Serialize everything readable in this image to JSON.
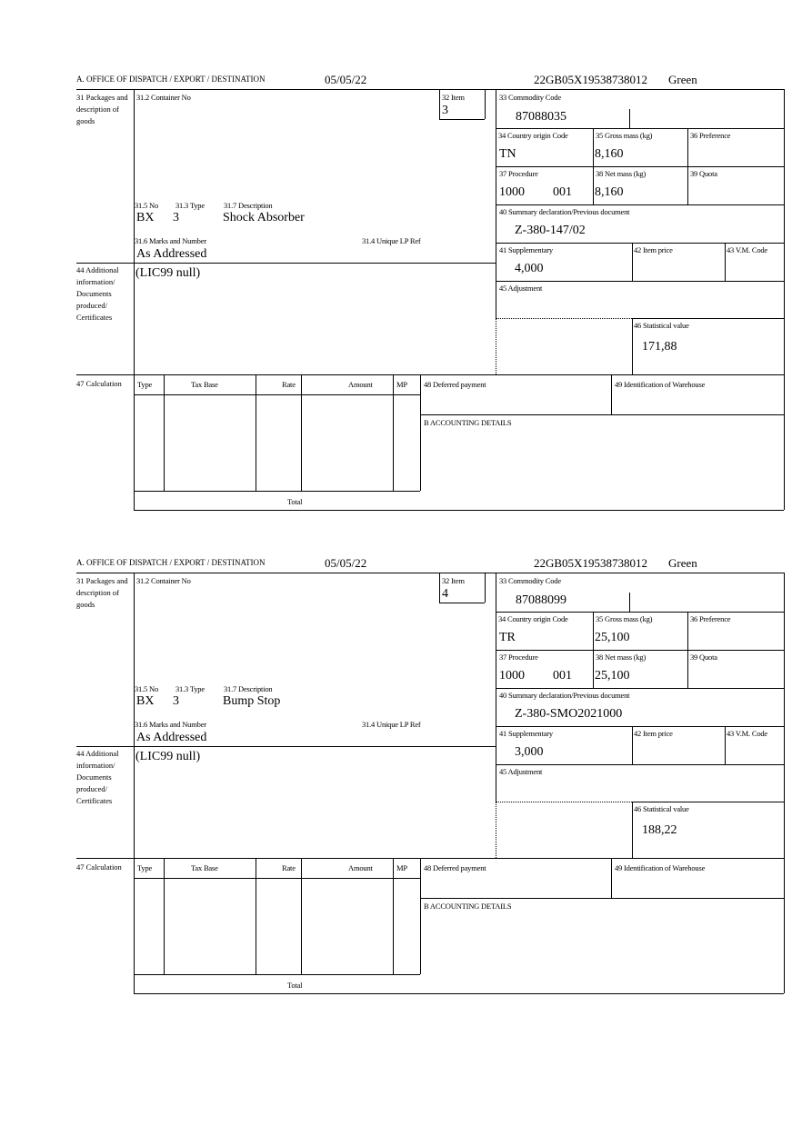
{
  "header": {
    "office_label": "A.  OFFICE OF DISPATCH / EXPORT / DESTINATION",
    "date": "05/05/22",
    "reference": "22GB05X19538738012",
    "route": "Green"
  },
  "labels": {
    "packages": "31 Packages and description of goods",
    "container_no": "31.2 Container No",
    "item": "32 Item",
    "no": "31.5 No",
    "type": "31.3 Type",
    "description": "31.7 Description",
    "marks": "31.6 Marks and Number",
    "unique_lp_ref": "31.4 Unique LP Ref",
    "additional_info": "44 Additional information/ Documents produced/ Certificates",
    "commodity_code": "33 Commodity Code",
    "country_origin": "34 Country origin Code",
    "gross_mass": "35 Gross mass (kg)",
    "preference": "36 Preference",
    "procedure": "37 Procedure",
    "net_mass": "38 Net mass (kg)",
    "quota": "39 Quota",
    "summary_declaration": "40 Summary declaration/Previous document",
    "supplementary": "41 Supplementary",
    "item_price": "42 Item price",
    "vm_code": "43 V.M. Code",
    "adjustment": "45 Adjustment",
    "statistical_value": "46 Statistical value",
    "calculation": "47 Calculation",
    "calc_type": "Type",
    "calc_tax_base": "Tax Base",
    "calc_rate": "Rate",
    "calc_amount": "Amount",
    "calc_mp": "MP",
    "calc_total": "Total",
    "deferred_payment": "48 Deferred payment",
    "warehouse": "49 Identification of Warehouse",
    "accounting": "B ACCOUNTING DETAILS"
  },
  "items": [
    {
      "item_no": "3",
      "pkg_no": "BX",
      "pkg_type": "3",
      "description": "Shock Absorber",
      "marks": "As Addressed",
      "additional_info": "(LIC99 null)",
      "commodity_code": "87088035",
      "country_origin": "TN",
      "gross_mass": "8,160",
      "procedure": "1000",
      "procedure_add": "001",
      "net_mass": "8,160",
      "summary_declaration": "Z-380-147/02",
      "supplementary": "4,000",
      "statistical_value": "171,88"
    },
    {
      "item_no": "4",
      "pkg_no": "BX",
      "pkg_type": "3",
      "description": "Bump Stop",
      "marks": "As Addressed",
      "additional_info": "(LIC99 null)",
      "commodity_code": "87088099",
      "country_origin": "TR",
      "gross_mass": "25,100",
      "procedure": "1000",
      "procedure_add": "001",
      "net_mass": "25,100",
      "summary_declaration": "Z-380-SMO2021000",
      "supplementary": "3,000",
      "statistical_value": "188,22"
    }
  ]
}
